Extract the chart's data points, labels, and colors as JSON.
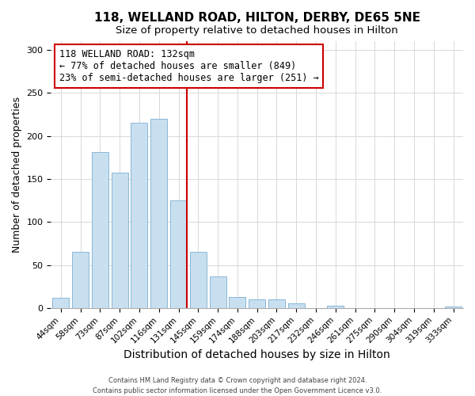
{
  "title": "118, WELLAND ROAD, HILTON, DERBY, DE65 5NE",
  "subtitle": "Size of property relative to detached houses in Hilton",
  "xlabel": "Distribution of detached houses by size in Hilton",
  "ylabel": "Number of detached properties",
  "bar_labels": [
    "44sqm",
    "58sqm",
    "73sqm",
    "87sqm",
    "102sqm",
    "116sqm",
    "131sqm",
    "145sqm",
    "159sqm",
    "174sqm",
    "188sqm",
    "203sqm",
    "217sqm",
    "232sqm",
    "246sqm",
    "261sqm",
    "275sqm",
    "290sqm",
    "304sqm",
    "319sqm",
    "333sqm"
  ],
  "bar_values": [
    12,
    65,
    181,
    157,
    215,
    220,
    125,
    65,
    37,
    13,
    10,
    10,
    5,
    0,
    3,
    0,
    0,
    0,
    0,
    0,
    2
  ],
  "bar_color_normal": "#c8dff0",
  "bar_edge_color": "#89b8d8",
  "highlight_index": 6,
  "highlight_bar_edge_color": "#cc0000",
  "vline_color": "#cc0000",
  "ylim": [
    0,
    310
  ],
  "yticks": [
    0,
    50,
    100,
    150,
    200,
    250,
    300
  ],
  "annotation_title": "118 WELLAND ROAD: 132sqm",
  "annotation_line1": "← 77% of detached houses are smaller (849)",
  "annotation_line2": "23% of semi-detached houses are larger (251) →",
  "annotation_box_edge": "#cc0000",
  "footnote1": "Contains HM Land Registry data © Crown copyright and database right 2024.",
  "footnote2": "Contains public sector information licensed under the Open Government Licence v3.0.",
  "title_fontsize": 11,
  "subtitle_fontsize": 9.5,
  "xlabel_fontsize": 10,
  "ylabel_fontsize": 9,
  "tick_fontsize": 8,
  "xtick_fontsize": 7.5,
  "background_color": "#ffffff",
  "grid_color": "#d8d8d8"
}
